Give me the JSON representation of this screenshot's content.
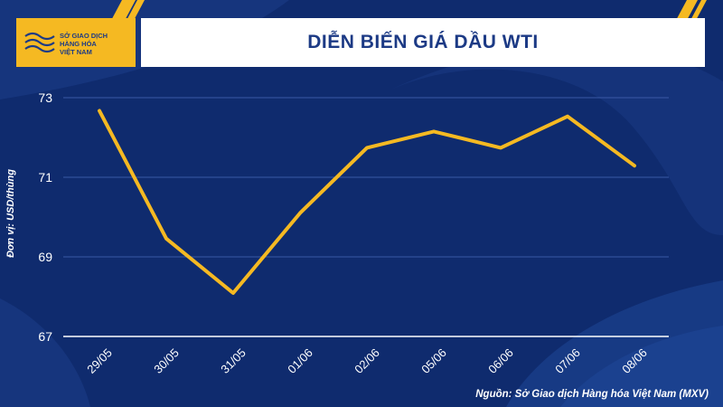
{
  "header": {
    "title": "DIỄN BIẾN GIÁ DẦU WTI",
    "logo_lines": [
      "SỞ GIAO DỊCH",
      "HÀNG HÓA",
      "VIỆT NAM"
    ]
  },
  "source": "Nguồn: Sở Giao dịch Hàng hóa Việt Nam (MXV)",
  "colors": {
    "background": "#0f2b6e",
    "accent": "#f5b922",
    "line": "#f5b922",
    "title": "#1c3a85"
  },
  "chart_data": {
    "type": "line",
    "title": "DIỄN BIẾN GIÁ DẦU WTI",
    "ylabel": "Đơn vị: USD/thùng",
    "xlabel": "",
    "categories": [
      "29/05",
      "30/05",
      "31/05",
      "01/06",
      "02/06",
      "05/06",
      "06/06",
      "07/06",
      "08/06"
    ],
    "series": [
      {
        "values": [
          72.67,
          69.46,
          68.09,
          70.1,
          71.74,
          72.15,
          71.74,
          72.53,
          71.29
        ]
      }
    ],
    "ylim": [
      67,
      73
    ],
    "yticks": [
      67,
      69,
      71,
      73
    ],
    "grid": true
  }
}
